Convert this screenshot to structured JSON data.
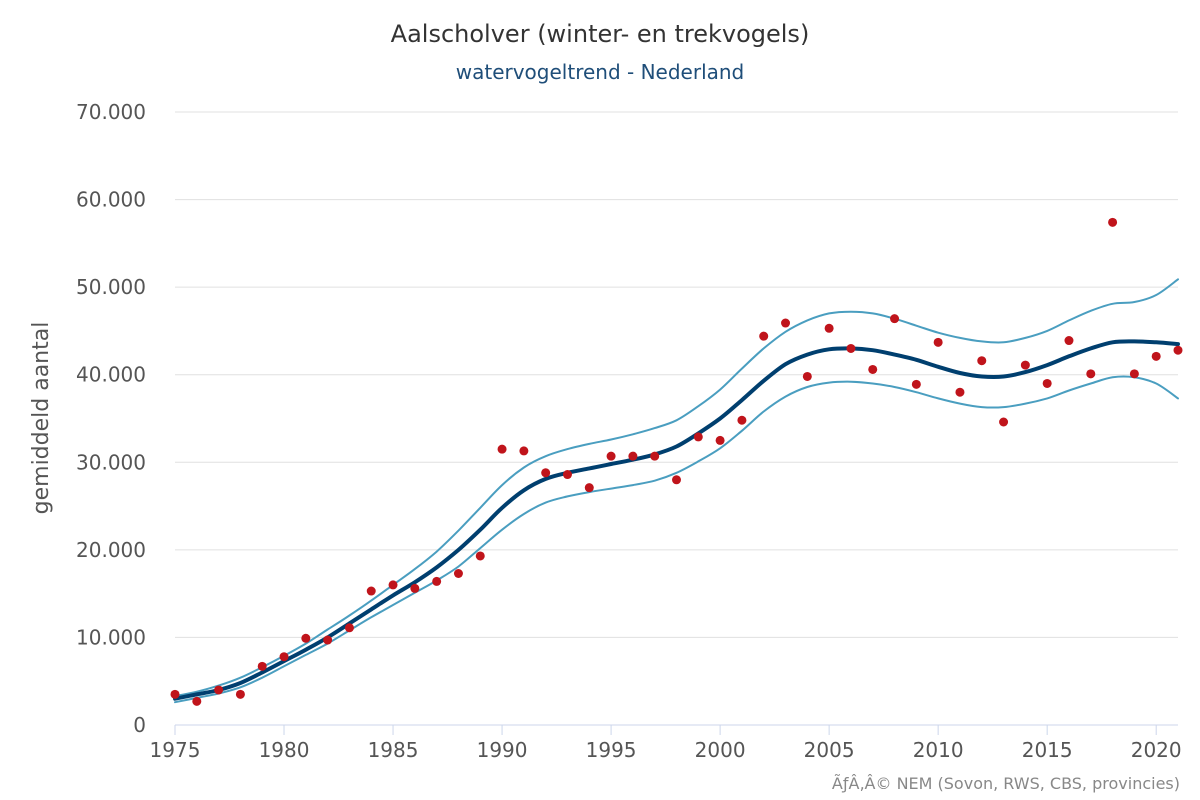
{
  "chart_data": {
    "type": "line",
    "title": "Aalscholver (winter- en trekvogels)",
    "subtitle": "watervogeltrend - Nederland",
    "ylabel": "gemiddeld aantal",
    "xlabel": "",
    "credit": "ÃƒÂ‚Â© NEM (Sovon, RWS, CBS, provincies)",
    "xlim": [
      1975,
      2021
    ],
    "ylim": [
      0,
      70000
    ],
    "x_ticks": [
      1975,
      1980,
      1985,
      1990,
      1995,
      2000,
      2005,
      2010,
      2015,
      2020
    ],
    "y_ticks": [
      {
        "value": 0,
        "label": "0"
      },
      {
        "value": 10000,
        "label": "10.000"
      },
      {
        "value": 20000,
        "label": "20.000"
      },
      {
        "value": 30000,
        "label": "30.000"
      },
      {
        "value": 40000,
        "label": "40.000"
      },
      {
        "value": 50000,
        "label": "50.000"
      },
      {
        "value": 60000,
        "label": "60.000"
      },
      {
        "value": 70000,
        "label": "70.000"
      }
    ],
    "colors": {
      "trend": "#003f6f",
      "bounds": "#4a9ec0",
      "points": "#c0141b",
      "grid": "#e0e0e0"
    },
    "x": [
      1975,
      1976,
      1977,
      1978,
      1979,
      1980,
      1981,
      1982,
      1983,
      1984,
      1985,
      1986,
      1987,
      1988,
      1989,
      1990,
      1991,
      1992,
      1993,
      1994,
      1995,
      1996,
      1997,
      1998,
      1999,
      2000,
      2001,
      2002,
      2003,
      2004,
      2005,
      2006,
      2007,
      2008,
      2009,
      2010,
      2011,
      2012,
      2013,
      2014,
      2015,
      2016,
      2017,
      2018,
      2019,
      2020,
      2021
    ],
    "series": [
      {
        "name": "trend",
        "values": [
          3000,
          3500,
          4000,
          4800,
          6000,
          7300,
          8600,
          10000,
          11600,
          13200,
          14800,
          16300,
          18000,
          20000,
          22300,
          24800,
          26800,
          28100,
          28800,
          29300,
          29800,
          30300,
          30900,
          31800,
          33300,
          35000,
          37100,
          39300,
          41200,
          42300,
          42900,
          43000,
          42800,
          42300,
          41700,
          40900,
          40200,
          39800,
          39800,
          40300,
          41100,
          42100,
          43000,
          43700,
          43800,
          43700,
          43500
        ]
      },
      {
        "name": "upper",
        "values": [
          3300,
          3800,
          4500,
          5400,
          6600,
          7900,
          9300,
          10900,
          12500,
          14200,
          16000,
          17800,
          19800,
          22200,
          24800,
          27400,
          29400,
          30700,
          31500,
          32100,
          32600,
          33200,
          33900,
          34800,
          36400,
          38300,
          40700,
          43000,
          44900,
          46200,
          47000,
          47200,
          47000,
          46400,
          45600,
          44800,
          44200,
          43800,
          43700,
          44200,
          45000,
          46200,
          47300,
          48100,
          48300,
          49100,
          50900
        ]
      },
      {
        "name": "lower",
        "values": [
          2600,
          3100,
          3600,
          4300,
          5400,
          6700,
          8000,
          9300,
          10800,
          12300,
          13700,
          15100,
          16500,
          18100,
          20200,
          22300,
          24100,
          25400,
          26100,
          26600,
          27000,
          27400,
          27900,
          28800,
          30100,
          31600,
          33600,
          35800,
          37500,
          38600,
          39100,
          39200,
          39000,
          38600,
          38000,
          37300,
          36700,
          36300,
          36300,
          36700,
          37300,
          38200,
          39000,
          39700,
          39700,
          39000,
          37300
        ]
      },
      {
        "name": "observed",
        "values": [
          3500,
          2700,
          4000,
          3500,
          6700,
          7800,
          9900,
          9700,
          11100,
          15300,
          16000,
          15600,
          16400,
          17300,
          19300,
          31500,
          31300,
          28800,
          28600,
          27100,
          30700,
          30700,
          30700,
          28000,
          32900,
          32500,
          34800,
          44400,
          45900,
          39800,
          45300,
          43000,
          40600,
          46400,
          38900,
          43700,
          38000,
          41600,
          34600,
          41100,
          39000,
          43900,
          40100,
          57400,
          40100,
          42100,
          42800
        ]
      }
    ]
  }
}
